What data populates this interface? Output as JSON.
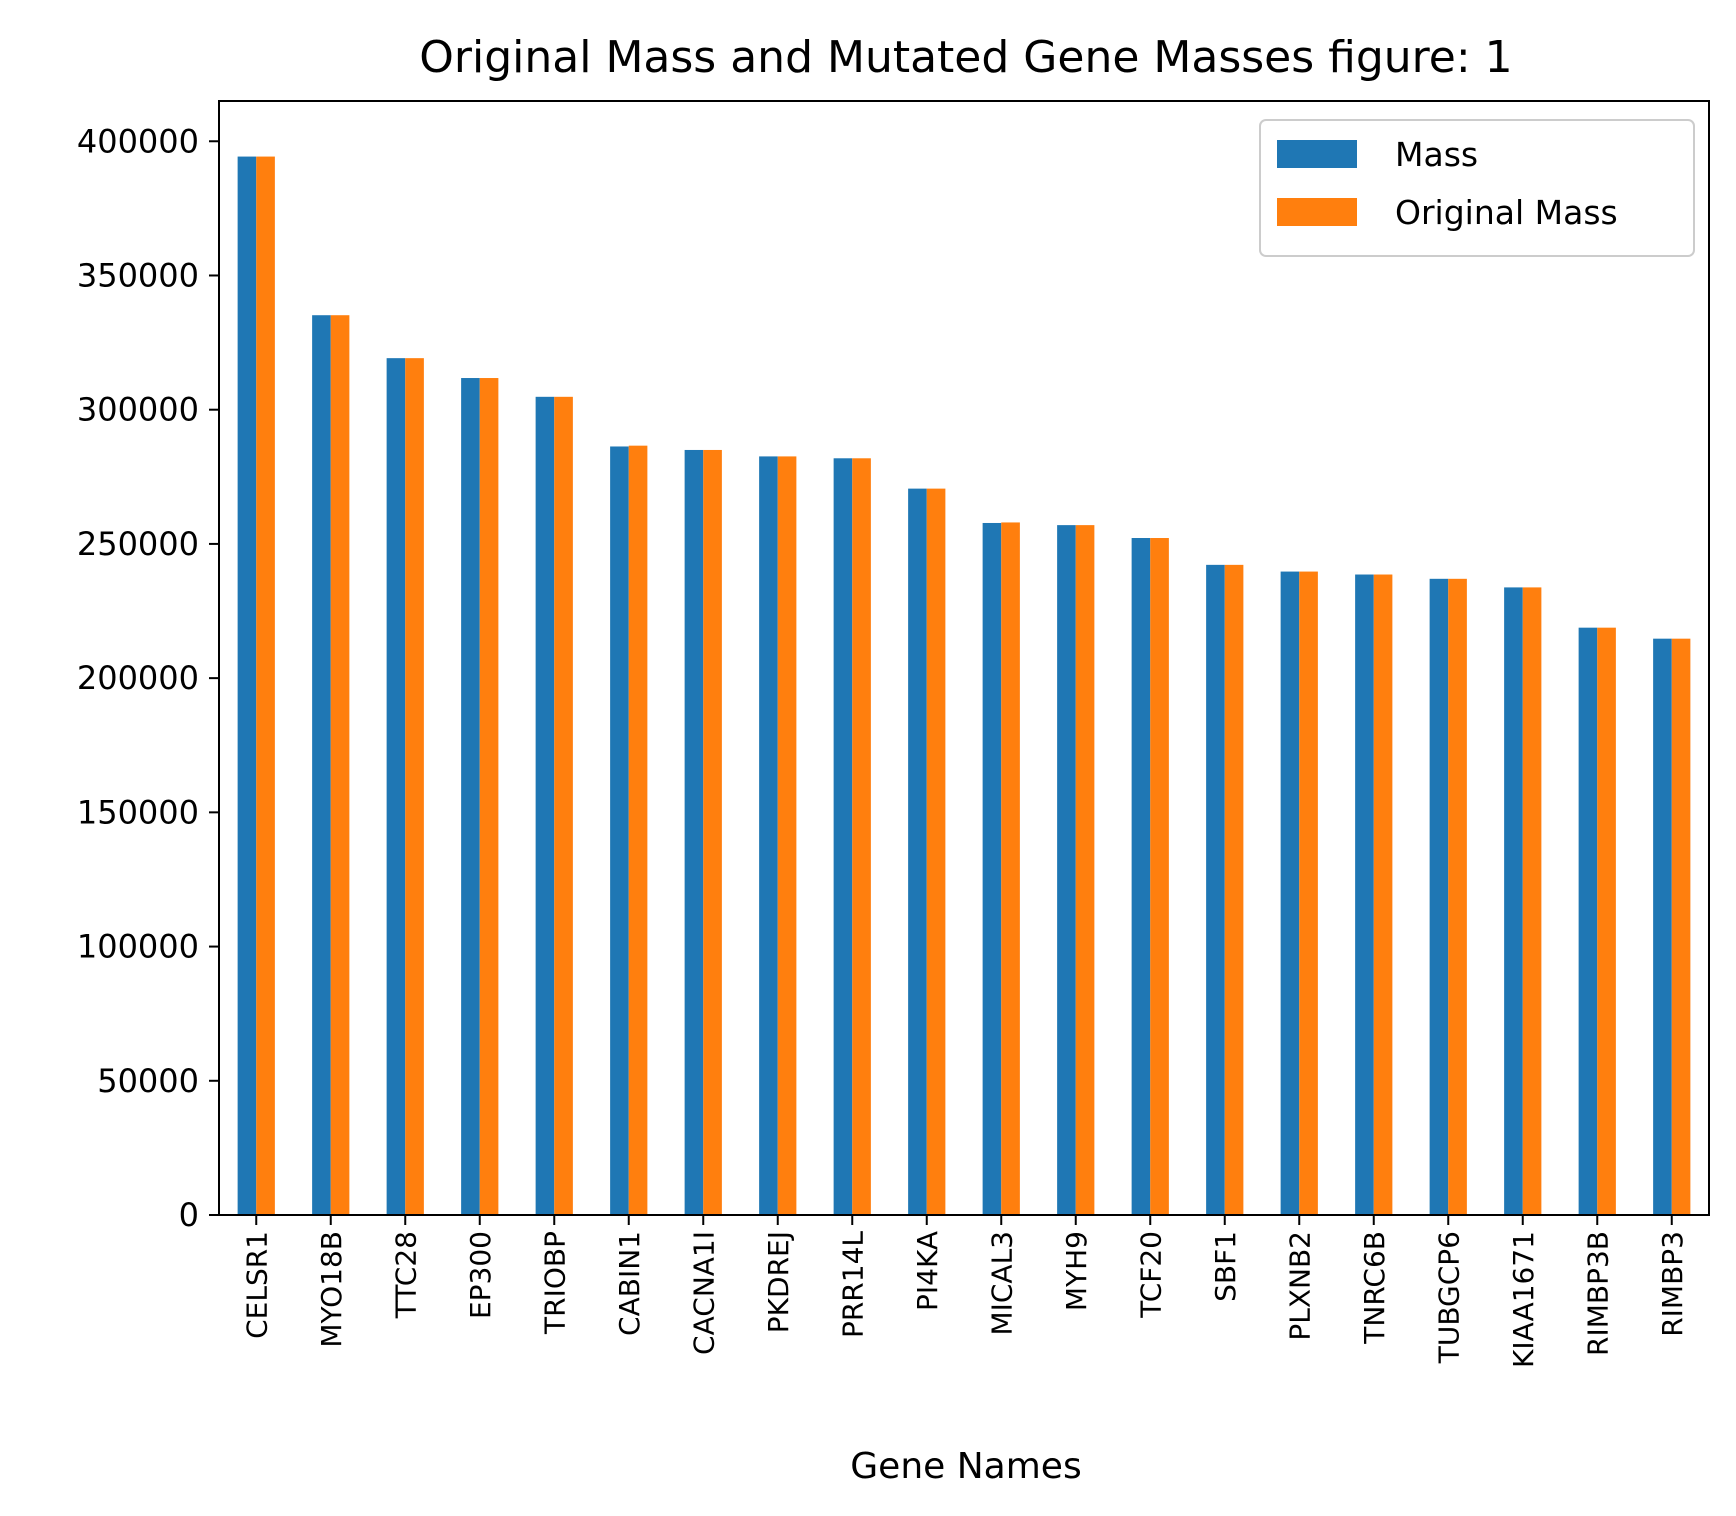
{
  "chart_data": {
    "type": "bar",
    "title": "Original Mass and Mutated Gene Masses figure: 1",
    "xlabel": "Gene Names",
    "ylabel": "",
    "ylim": [
      0,
      415000
    ],
    "yticks": [
      0,
      50000,
      100000,
      150000,
      200000,
      250000,
      300000,
      350000,
      400000
    ],
    "grid": false,
    "legend_position": "top-right",
    "categories": [
      "CELSR1",
      "MYO18B",
      "TTC28",
      "EP300",
      "TRIOBP",
      "CABIN1",
      "CACNA1I",
      "PKDREJ",
      "PRR14L",
      "PI4KA",
      "MICAL3",
      "MYH9",
      "TCF20",
      "SBF1",
      "PLXNB2",
      "TNRC6B",
      "TUBGCP6",
      "KIAA1671",
      "RIMBP3B",
      "RIMBP3"
    ],
    "series": [
      {
        "name": "Mass",
        "color": "#1f77b4",
        "values": [
          394300,
          335200,
          319200,
          311800,
          304800,
          286300,
          285000,
          282600,
          281900,
          270600,
          257800,
          257000,
          252200,
          242200,
          239700,
          238600,
          237000,
          233800,
          218800,
          214700
        ]
      },
      {
        "name": "Original Mass",
        "color": "#ff7f0e",
        "values": [
          394300,
          335200,
          319200,
          311800,
          304800,
          286600,
          285000,
          282600,
          281900,
          270600,
          258000,
          257000,
          252200,
          242200,
          239700,
          238600,
          237000,
          233800,
          218800,
          214700
        ]
      }
    ]
  }
}
